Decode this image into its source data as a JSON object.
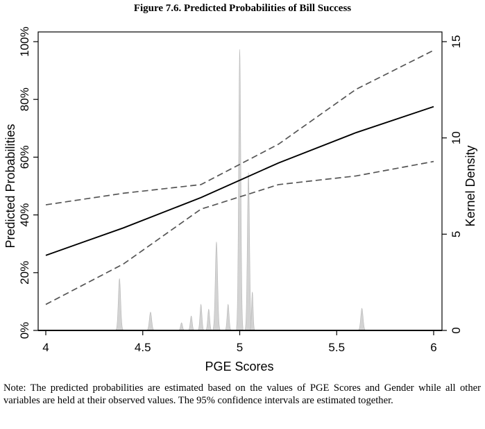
{
  "title": "Figure 7.6. Predicted Probabilities of Bill Success",
  "note": "Note: The predicted probabilities are estimated based on the values of PGE Scores and Gender while all other variables are held at their observed values. The 95% confidence intervals are estimated together.",
  "chart_data": {
    "type": "line",
    "xlabel": "PGE Scores",
    "ylabel": "Predicted Probabilities",
    "y2label": "Kernel Density",
    "xlim": [
      4,
      6
    ],
    "ylim": [
      0,
      100
    ],
    "y2lim": [
      0,
      15
    ],
    "xticks": [
      4,
      4.5,
      5,
      5.5,
      6
    ],
    "xtick_labels": [
      "4",
      "4.5",
      "5",
      "5.5",
      "6"
    ],
    "yticks": [
      0,
      20,
      40,
      60,
      80,
      100
    ],
    "ytick_labels": [
      "0%",
      "20%",
      "40%",
      "60%",
      "80%",
      "100%"
    ],
    "y2ticks": [
      0,
      5,
      10,
      15
    ],
    "y2tick_labels": [
      "0",
      "5",
      "10",
      "15"
    ],
    "grid": false,
    "legend": "none",
    "series": [
      {
        "role": "estimate",
        "color": "#000000",
        "style": "solid",
        "x": [
          4,
          4.4,
          4.8,
          5.2,
          5.6,
          6
        ],
        "y": [
          26,
          35.5,
          46,
          58,
          68.5,
          77.5
        ]
      },
      {
        "role": "upper-ci",
        "color": "#555555",
        "style": "dashed",
        "x": [
          4,
          4.4,
          4.8,
          5.2,
          5.6,
          6
        ],
        "y": [
          43.5,
          47.5,
          50.5,
          64.5,
          83.5,
          97
        ]
      },
      {
        "role": "lower-ci",
        "color": "#555555",
        "style": "dashed",
        "x": [
          4,
          4.4,
          4.8,
          5.2,
          5.6,
          6
        ],
        "y": [
          9,
          23,
          42,
          50.5,
          53.5,
          58.5
        ]
      }
    ],
    "density": {
      "axis": "y2",
      "color": "#d3d3d3",
      "edge_color": "#b8b8b8",
      "peaks": [
        {
          "x": 4.38,
          "height": 2.7,
          "width": 0.006
        },
        {
          "x": 4.54,
          "height": 0.95,
          "width": 0.006
        },
        {
          "x": 4.7,
          "height": 0.4,
          "width": 0.005
        },
        {
          "x": 4.75,
          "height": 0.75,
          "width": 0.005
        },
        {
          "x": 4.8,
          "height": 1.35,
          "width": 0.005
        },
        {
          "x": 4.84,
          "height": 1.1,
          "width": 0.005
        },
        {
          "x": 4.88,
          "height": 4.6,
          "width": 0.006
        },
        {
          "x": 4.94,
          "height": 1.35,
          "width": 0.005
        },
        {
          "x": 5.0,
          "height": 14.6,
          "width": 0.0055
        },
        {
          "x": 5.045,
          "height": 8.2,
          "width": 0.0055
        },
        {
          "x": 5.065,
          "height": 2.0,
          "width": 0.004
        },
        {
          "x": 5.63,
          "height": 1.15,
          "width": 0.006
        }
      ]
    }
  }
}
